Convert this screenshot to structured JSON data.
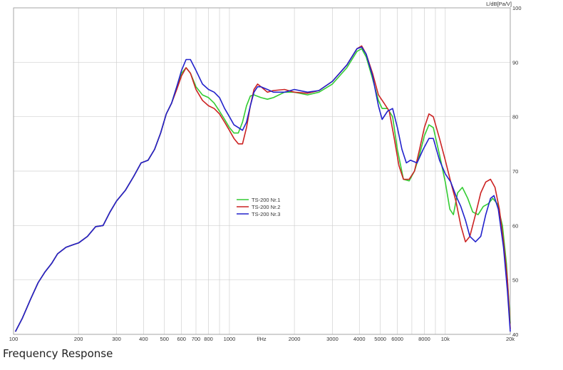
{
  "caption": "Frequency Response",
  "chart_data": {
    "type": "line",
    "title": "",
    "xlabel": "f/Hz",
    "ylabel": "L/dB[Pa/V]",
    "xscale": "log",
    "xlim": [
      100,
      20000
    ],
    "ylim": [
      40,
      100
    ],
    "grid": true,
    "legend_position": "center",
    "x_tick_labels": [
      {
        "value": 100,
        "label": "100"
      },
      {
        "value": 200,
        "label": "200"
      },
      {
        "value": 300,
        "label": "300"
      },
      {
        "value": 400,
        "label": "400"
      },
      {
        "value": 500,
        "label": "500"
      },
      {
        "value": 600,
        "label": "600"
      },
      {
        "value": 700,
        "label": "700"
      },
      {
        "value": 800,
        "label": "800"
      },
      {
        "value": 1000,
        "label": "1000"
      },
      {
        "value": 2000,
        "label": "2000"
      },
      {
        "value": 3000,
        "label": "3000"
      },
      {
        "value": 4000,
        "label": "4000"
      },
      {
        "value": 5000,
        "label": "5000"
      },
      {
        "value": 6000,
        "label": "6000"
      },
      {
        "value": 8000,
        "label": "8000"
      },
      {
        "value": 10000,
        "label": "10k"
      },
      {
        "value": 20000,
        "label": "20k"
      }
    ],
    "y_tick_labels": [
      {
        "value": 40,
        "label": "40"
      },
      {
        "value": 50,
        "label": "50"
      },
      {
        "value": 60,
        "label": "60"
      },
      {
        "value": 70,
        "label": "70"
      },
      {
        "value": 80,
        "label": "80"
      },
      {
        "value": 90,
        "label": "90"
      },
      {
        "value": 100,
        "label": "100"
      }
    ],
    "series": [
      {
        "name": "TS-200 Nr.1",
        "color": "#33cc33",
        "points": [
          [
            102,
            40.5
          ],
          [
            110,
            43
          ],
          [
            120,
            46.5
          ],
          [
            130,
            49.5
          ],
          [
            140,
            51.5
          ],
          [
            150,
            53
          ],
          [
            160,
            54.8
          ],
          [
            175,
            56
          ],
          [
            190,
            56.5
          ],
          [
            200,
            56.8
          ],
          [
            220,
            58
          ],
          [
            240,
            59.8
          ],
          [
            260,
            60
          ],
          [
            280,
            62.5
          ],
          [
            300,
            64.5
          ],
          [
            330,
            66.5
          ],
          [
            360,
            69
          ],
          [
            390,
            71.5
          ],
          [
            420,
            72
          ],
          [
            450,
            74
          ],
          [
            480,
            77
          ],
          [
            510,
            80.5
          ],
          [
            540,
            82.5
          ],
          [
            570,
            85.5
          ],
          [
            600,
            88
          ],
          [
            630,
            89
          ],
          [
            660,
            88
          ],
          [
            700,
            85.5
          ],
          [
            750,
            84
          ],
          [
            800,
            83.5
          ],
          [
            850,
            82.5
          ],
          [
            900,
            81
          ],
          [
            950,
            79.5
          ],
          [
            1000,
            78
          ],
          [
            1050,
            77
          ],
          [
            1100,
            77
          ],
          [
            1150,
            79
          ],
          [
            1200,
            82
          ],
          [
            1250,
            83.8
          ],
          [
            1300,
            84
          ],
          [
            1400,
            83.5
          ],
          [
            1500,
            83.2
          ],
          [
            1600,
            83.5
          ],
          [
            1800,
            84.5
          ],
          [
            2000,
            84.5
          ],
          [
            2300,
            84
          ],
          [
            2600,
            84.5
          ],
          [
            3000,
            86
          ],
          [
            3500,
            89
          ],
          [
            3900,
            92
          ],
          [
            4100,
            92.5
          ],
          [
            4300,
            91
          ],
          [
            4600,
            87
          ],
          [
            4900,
            83
          ],
          [
            5100,
            81.5
          ],
          [
            5400,
            81.5
          ],
          [
            5700,
            80
          ],
          [
            6000,
            74
          ],
          [
            6400,
            68.5
          ],
          [
            6800,
            68.2
          ],
          [
            7200,
            70
          ],
          [
            7600,
            73
          ],
          [
            8000,
            76.5
          ],
          [
            8400,
            78.5
          ],
          [
            8800,
            78
          ],
          [
            9400,
            73
          ],
          [
            10000,
            68
          ],
          [
            10500,
            63
          ],
          [
            10900,
            62
          ],
          [
            11400,
            66
          ],
          [
            12000,
            67
          ],
          [
            12700,
            65
          ],
          [
            13400,
            62.5
          ],
          [
            14200,
            62
          ],
          [
            15000,
            63.5
          ],
          [
            15800,
            64
          ],
          [
            16600,
            65
          ],
          [
            17400,
            64
          ],
          [
            18400,
            60
          ],
          [
            19200,
            53
          ],
          [
            20000,
            42
          ]
        ]
      },
      {
        "name": "TS-200 Nr.2",
        "color": "#cc2222",
        "points": [
          [
            102,
            40.5
          ],
          [
            110,
            43
          ],
          [
            120,
            46.5
          ],
          [
            130,
            49.5
          ],
          [
            140,
            51.5
          ],
          [
            150,
            53
          ],
          [
            160,
            54.8
          ],
          [
            175,
            56
          ],
          [
            190,
            56.5
          ],
          [
            200,
            56.8
          ],
          [
            220,
            58
          ],
          [
            240,
            59.8
          ],
          [
            260,
            60
          ],
          [
            280,
            62.5
          ],
          [
            300,
            64.5
          ],
          [
            330,
            66.5
          ],
          [
            360,
            69
          ],
          [
            390,
            71.5
          ],
          [
            420,
            72
          ],
          [
            450,
            74
          ],
          [
            480,
            77
          ],
          [
            510,
            80.5
          ],
          [
            540,
            82.5
          ],
          [
            570,
            85
          ],
          [
            600,
            87.5
          ],
          [
            630,
            89
          ],
          [
            660,
            88
          ],
          [
            700,
            85
          ],
          [
            750,
            83
          ],
          [
            800,
            82
          ],
          [
            850,
            81.5
          ],
          [
            900,
            80.5
          ],
          [
            950,
            79
          ],
          [
            1000,
            77.5
          ],
          [
            1050,
            76
          ],
          [
            1100,
            75
          ],
          [
            1150,
            75
          ],
          [
            1200,
            78
          ],
          [
            1250,
            82
          ],
          [
            1300,
            85
          ],
          [
            1350,
            86
          ],
          [
            1400,
            85.5
          ],
          [
            1500,
            84.5
          ],
          [
            1600,
            84.8
          ],
          [
            1800,
            85
          ],
          [
            2000,
            84.5
          ],
          [
            2300,
            84.3
          ],
          [
            2600,
            84.8
          ],
          [
            3000,
            86.5
          ],
          [
            3500,
            89.5
          ],
          [
            3900,
            92.5
          ],
          [
            4100,
            93
          ],
          [
            4300,
            91.5
          ],
          [
            4600,
            88
          ],
          [
            4900,
            84
          ],
          [
            5200,
            82.5
          ],
          [
            5500,
            81
          ],
          [
            5800,
            76
          ],
          [
            6100,
            71
          ],
          [
            6400,
            68.5
          ],
          [
            6800,
            68.5
          ],
          [
            7200,
            70
          ],
          [
            7600,
            74
          ],
          [
            8000,
            78
          ],
          [
            8400,
            80.5
          ],
          [
            8800,
            80
          ],
          [
            9400,
            76
          ],
          [
            10000,
            72
          ],
          [
            10600,
            68
          ],
          [
            11200,
            64.5
          ],
          [
            11800,
            60
          ],
          [
            12400,
            57
          ],
          [
            13000,
            58
          ],
          [
            13800,
            62
          ],
          [
            14600,
            66
          ],
          [
            15400,
            68
          ],
          [
            16200,
            68.5
          ],
          [
            17000,
            67
          ],
          [
            17800,
            63
          ],
          [
            18600,
            57
          ],
          [
            19400,
            50
          ],
          [
            20000,
            41
          ]
        ]
      },
      {
        "name": "TS-200 Nr.3",
        "color": "#2222cc",
        "points": [
          [
            102,
            40.5
          ],
          [
            110,
            43
          ],
          [
            120,
            46.5
          ],
          [
            130,
            49.5
          ],
          [
            140,
            51.5
          ],
          [
            150,
            53
          ],
          [
            160,
            54.8
          ],
          [
            175,
            56
          ],
          [
            190,
            56.5
          ],
          [
            200,
            56.8
          ],
          [
            220,
            58
          ],
          [
            240,
            59.8
          ],
          [
            260,
            60
          ],
          [
            280,
            62.5
          ],
          [
            300,
            64.5
          ],
          [
            330,
            66.5
          ],
          [
            360,
            69
          ],
          [
            390,
            71.5
          ],
          [
            420,
            72
          ],
          [
            450,
            74
          ],
          [
            480,
            77
          ],
          [
            510,
            80.5
          ],
          [
            540,
            82.5
          ],
          [
            570,
            85.5
          ],
          [
            600,
            88.5
          ],
          [
            630,
            90.5
          ],
          [
            660,
            90.5
          ],
          [
            700,
            88.5
          ],
          [
            750,
            86
          ],
          [
            800,
            85
          ],
          [
            850,
            84.5
          ],
          [
            900,
            83.5
          ],
          [
            950,
            81.5
          ],
          [
            1000,
            80
          ],
          [
            1050,
            78.5
          ],
          [
            1100,
            78
          ],
          [
            1150,
            77.5
          ],
          [
            1200,
            79
          ],
          [
            1250,
            82
          ],
          [
            1300,
            84.5
          ],
          [
            1350,
            85.5
          ],
          [
            1400,
            85.5
          ],
          [
            1500,
            85
          ],
          [
            1600,
            84.5
          ],
          [
            1800,
            84.5
          ],
          [
            2000,
            85
          ],
          [
            2300,
            84.5
          ],
          [
            2600,
            84.8
          ],
          [
            3000,
            86.5
          ],
          [
            3500,
            89.5
          ],
          [
            3900,
            92.5
          ],
          [
            4100,
            92.8
          ],
          [
            4300,
            91.5
          ],
          [
            4600,
            87.5
          ],
          [
            4900,
            82
          ],
          [
            5100,
            79.5
          ],
          [
            5400,
            81
          ],
          [
            5700,
            81.5
          ],
          [
            6000,
            78
          ],
          [
            6300,
            74
          ],
          [
            6600,
            71.5
          ],
          [
            6900,
            72
          ],
          [
            7400,
            71.5
          ],
          [
            7900,
            74
          ],
          [
            8400,
            76
          ],
          [
            8800,
            76
          ],
          [
            9400,
            72
          ],
          [
            10000,
            69.5
          ],
          [
            10600,
            68
          ],
          [
            11200,
            65.5
          ],
          [
            11800,
            63.5
          ],
          [
            12400,
            61
          ],
          [
            13000,
            58
          ],
          [
            13800,
            57
          ],
          [
            14600,
            58
          ],
          [
            15400,
            62
          ],
          [
            16200,
            65
          ],
          [
            16800,
            65.5
          ],
          [
            17600,
            63
          ],
          [
            18600,
            56
          ],
          [
            19400,
            48
          ],
          [
            20000,
            40.5
          ]
        ]
      }
    ]
  }
}
